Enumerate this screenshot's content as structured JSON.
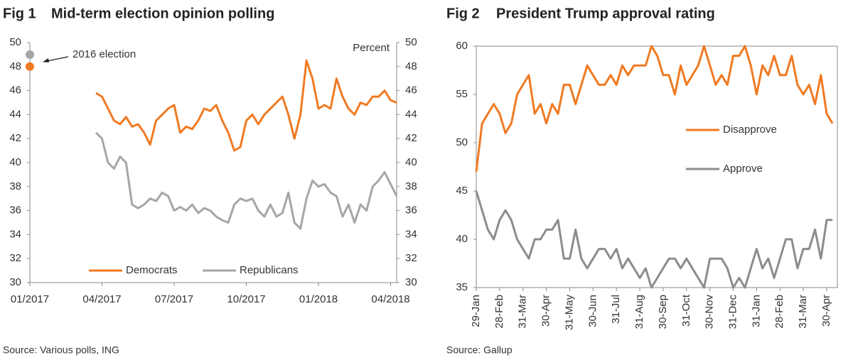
{
  "chart_data": [
    {
      "type": "line",
      "fig": "Fig 1",
      "title": "Mid-term election opinion polling",
      "source": "Source: Various polls, ING",
      "y_label": "Percent",
      "xlim": [
        0,
        15.25
      ],
      "xticks": [
        {
          "value": 0,
          "label": "01/2017"
        },
        {
          "value": 3,
          "label": "04/2017"
        },
        {
          "value": 6,
          "label": "07/2017"
        },
        {
          "value": 9,
          "label": "10/2017"
        },
        {
          "value": 12,
          "label": "01/2018"
        },
        {
          "value": 15,
          "label": "04/2018"
        }
      ],
      "ylim": [
        30,
        50
      ],
      "yticks": [
        30,
        32,
        34,
        36,
        38,
        40,
        42,
        44,
        46,
        48,
        50
      ],
      "y2lim": [
        30,
        50
      ],
      "y2ticks": [
        30,
        32,
        34,
        36,
        38,
        40,
        42,
        44,
        46,
        48,
        50
      ],
      "x": [
        2.75,
        3.0,
        3.25,
        3.5,
        3.75,
        4.0,
        4.25,
        4.5,
        4.75,
        5.0,
        5.25,
        5.5,
        5.75,
        6.0,
        6.25,
        6.5,
        6.75,
        7.0,
        7.25,
        7.5,
        7.75,
        8.0,
        8.25,
        8.5,
        8.75,
        9.0,
        9.25,
        9.5,
        9.75,
        10.0,
        10.25,
        10.5,
        10.75,
        11.0,
        11.25,
        11.5,
        11.75,
        12.0,
        12.25,
        12.5,
        12.75,
        13.0,
        13.25,
        13.5,
        13.75,
        14.0,
        14.25,
        14.5,
        14.75,
        15.0,
        15.25
      ],
      "series": [
        {
          "name": "Democrats",
          "color": "#f07a22",
          "values": [
            45.8,
            45.5,
            44.5,
            43.5,
            43.2,
            43.8,
            43,
            43.2,
            42.5,
            41.5,
            43.5,
            44,
            44.5,
            44.8,
            42.5,
            43,
            42.8,
            43.5,
            44.5,
            44.3,
            44.8,
            43.5,
            42.5,
            41,
            41.3,
            43.5,
            44,
            43.2,
            44,
            44.5,
            45,
            45.5,
            44,
            42,
            44,
            48.5,
            47,
            44.5,
            44.8,
            44.5,
            47,
            45.5,
            44.5,
            44,
            45,
            44.8,
            45.5,
            45.5,
            46,
            45.2,
            45.0
          ]
        },
        {
          "name": "Republicans",
          "color": "#a6a6a6",
          "values": [
            42.5,
            42,
            40,
            39.5,
            40.5,
            40,
            36.5,
            36.2,
            36.5,
            37,
            36.8,
            37.5,
            37.2,
            36,
            36.3,
            36,
            36.5,
            35.8,
            36.2,
            36,
            35.5,
            35.2,
            35,
            36.5,
            37,
            36.8,
            37,
            36,
            35.5,
            36.5,
            35.5,
            35.8,
            37.5,
            35,
            34.5,
            37,
            38.5,
            38,
            38.2,
            37.5,
            37.2,
            35.5,
            36.5,
            35,
            36.5,
            36,
            38,
            38.5,
            39.2,
            38.2,
            37.2
          ]
        }
      ],
      "annotation": {
        "text": "2016 election",
        "values": [
          49,
          48
        ],
        "colors": [
          "#a6a6a6",
          "#f07a22"
        ]
      },
      "legend": "bottom"
    },
    {
      "type": "line",
      "fig": "Fig 2",
      "title": "President Trump approval rating",
      "source": "Source: Gallup",
      "categories": [
        "29-Jan",
        null,
        null,
        null,
        "28-Feb",
        null,
        null,
        null,
        "31-Mar",
        null,
        null,
        null,
        "30-Apr",
        null,
        null,
        null,
        "31-May",
        null,
        null,
        null,
        "30-Jun",
        null,
        null,
        null,
        "31-Jul",
        null,
        null,
        null,
        "31-Aug",
        null,
        null,
        null,
        "30-Sep",
        null,
        null,
        null,
        "31-Oct",
        null,
        null,
        null,
        "30-Nov",
        null,
        null,
        null,
        "31-Dec",
        null,
        null,
        null,
        "31-Jan",
        null,
        null,
        null,
        "28-Feb",
        null,
        null,
        null,
        "31-Mar",
        null,
        null,
        null,
        "30-Apr",
        null
      ],
      "ylim": [
        35,
        60
      ],
      "yticks": [
        35,
        40,
        45,
        50,
        55,
        60
      ],
      "series": [
        {
          "name": "Disapprove",
          "color": "#f07a22",
          "values": [
            47,
            52,
            53,
            54,
            53,
            51,
            52,
            55,
            56,
            57,
            53,
            54,
            52,
            54,
            53,
            56,
            56,
            54,
            56,
            58,
            57,
            56,
            56,
            57,
            56,
            58,
            57,
            58,
            58,
            58,
            60,
            59,
            57,
            57,
            55,
            58,
            56,
            57,
            58,
            60,
            58,
            56,
            57,
            56,
            59,
            59,
            60,
            58,
            55,
            58,
            57,
            59,
            57,
            57,
            59,
            56,
            55,
            56,
            54,
            57,
            53,
            52
          ]
        },
        {
          "name": "Approve",
          "color": "#8c8c8c",
          "values": [
            45,
            43,
            41,
            40,
            42,
            43,
            42,
            40,
            39,
            38,
            40,
            40,
            41,
            41,
            42,
            38,
            38,
            41,
            38,
            37,
            38,
            39,
            39,
            38,
            39,
            37,
            38,
            37,
            36,
            37,
            35,
            36,
            37,
            38,
            38,
            37,
            38,
            37,
            36,
            35,
            38,
            38,
            38,
            37,
            35,
            36,
            35,
            37,
            39,
            37,
            38,
            36,
            38,
            40,
            40,
            37,
            39,
            39,
            41,
            38,
            42,
            42
          ]
        }
      ],
      "legend": "right"
    }
  ]
}
